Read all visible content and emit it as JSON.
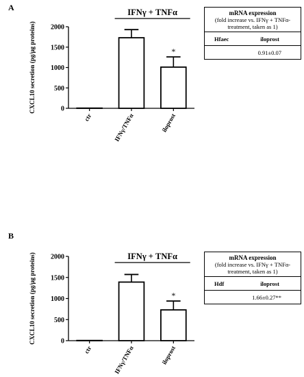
{
  "chart_data": [
    {
      "panel": "A",
      "type": "bar",
      "categories": [
        "ctr",
        "IFNγ/TNFα",
        "iloprost"
      ],
      "values": [
        5,
        1730,
        1010
      ],
      "errors": [
        0,
        200,
        250
      ],
      "significance": [
        "",
        "",
        "*"
      ],
      "bracket_label": "IFNγ + TNFα",
      "ylabel": "CXCL10 secretion (pg/μg proteins)",
      "yticks": [
        "0",
        "500",
        "1000",
        "1500",
        "2000"
      ],
      "ylim": [
        0,
        2000
      ],
      "table": {
        "title": "mRNA expression",
        "subtitle_lines": [
          "(fold increase vs. IFNγ + TNFα-",
          "treatment, taken as 1)"
        ],
        "col1": "Hfaec",
        "col2": "iloprost",
        "value": "0.91±0.07"
      }
    },
    {
      "panel": "B",
      "type": "bar",
      "categories": [
        "ctr",
        "IFNγ/TNFα",
        "iloprost"
      ],
      "values": [
        5,
        1390,
        730
      ],
      "errors": [
        0,
        180,
        210
      ],
      "significance": [
        "",
        "",
        "*"
      ],
      "bracket_label": "IFNγ + TNFα",
      "ylabel": "CXCL10 secretion (pg/μg proteins)",
      "yticks": [
        "0",
        "500",
        "1000",
        "1500",
        "2000"
      ],
      "ylim": [
        0,
        2000
      ],
      "table": {
        "title": "mRNA expression",
        "subtitle_lines": [
          "(fold increase vs. IFNγ + TNFα-",
          "treatment, taken as 1)"
        ],
        "col1": "Hdf",
        "col2": "iloprost",
        "value": "1.66±0.27**"
      }
    }
  ]
}
